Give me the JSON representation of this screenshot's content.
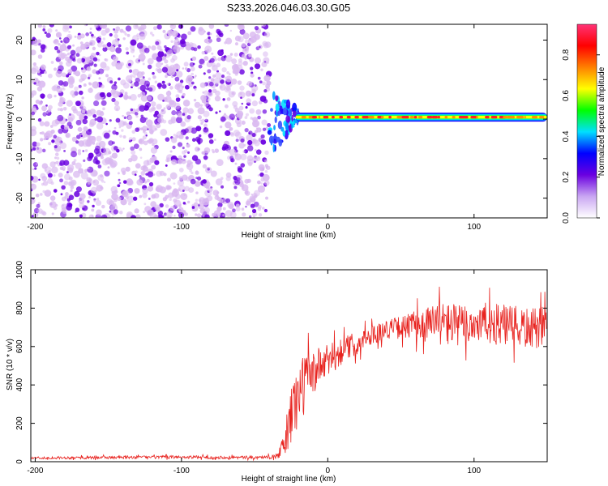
{
  "title": "S233.2026.046.03.30.G05",
  "colors": {
    "snr_line": "#e8231f",
    "dot_dark": "#6a00e0",
    "dot_light": "#d9b8f0"
  },
  "chart_data": [
    {
      "type": "heatmap",
      "xlabel": "Height of straight line (km)",
      "ylabel": "Frequency (Hz)",
      "xlim": [
        -203,
        150
      ],
      "ylim": [
        -25,
        24
      ],
      "xticks": [
        -200,
        -100,
        0,
        100
      ],
      "yticks": [
        -20,
        -10,
        0,
        10,
        20
      ],
      "xtick_labels": [
        "-200",
        "-100",
        "0",
        "100"
      ],
      "ytick_labels": [
        "-20",
        "-10",
        "0",
        "10",
        "20"
      ],
      "noise_region_x": [
        -203,
        -40
      ],
      "transition_x": [
        -40,
        -20
      ],
      "signal_band_freq_hz": [
        0,
        1
      ],
      "colorbar": {
        "label": "Normalized spectral amplitude",
        "range": [
          0,
          0.95
        ],
        "ticks": [
          0.0,
          0.2,
          0.4,
          0.6,
          0.8
        ],
        "tick_labels": [
          "0.0",
          "0.2",
          "0.4",
          "0.6",
          "0.8"
        ],
        "colormap": [
          "#ffffff",
          "#c9a6f2",
          "#6a00e0",
          "#0000ff",
          "#00e0ff",
          "#00ff00",
          "#ffff00",
          "#ff8000",
          "#ff0000",
          "#ff3377"
        ]
      }
    },
    {
      "type": "line",
      "xlabel": "Height of straight line (km)",
      "ylabel": "SNR (10 * v/v)",
      "xlim": [
        -203,
        150
      ],
      "ylim": [
        0,
        1000
      ],
      "xticks": [
        -200,
        -100,
        0,
        100
      ],
      "yticks": [
        0,
        200,
        400,
        600,
        800,
        1000
      ],
      "xtick_labels": [
        "-200",
        "-100",
        "0",
        "100"
      ],
      "ytick_labels": [
        "0",
        "200",
        "400",
        "600",
        "800",
        "1000"
      ],
      "series": [
        {
          "name": "SNR",
          "x": [
            -203,
            -150,
            -100,
            -50,
            -35,
            -30,
            -25,
            -20,
            -15,
            -10,
            -5,
            0,
            10,
            20,
            30,
            40,
            50,
            60,
            70,
            80,
            90,
            100,
            110,
            120,
            130,
            140,
            150
          ],
          "y": [
            20,
            22,
            24,
            22,
            25,
            80,
            250,
            350,
            420,
            460,
            500,
            520,
            580,
            620,
            660,
            690,
            700,
            710,
            720,
            720,
            710,
            720,
            720,
            710,
            700,
            690,
            700
          ],
          "spread": [
            6,
            8,
            8,
            8,
            10,
            60,
            180,
            180,
            150,
            120,
            100,
            90,
            70,
            60,
            50,
            50,
            60,
            80,
            100,
            120,
            110,
            110,
            110,
            110,
            110,
            110,
            110
          ]
        }
      ]
    }
  ]
}
